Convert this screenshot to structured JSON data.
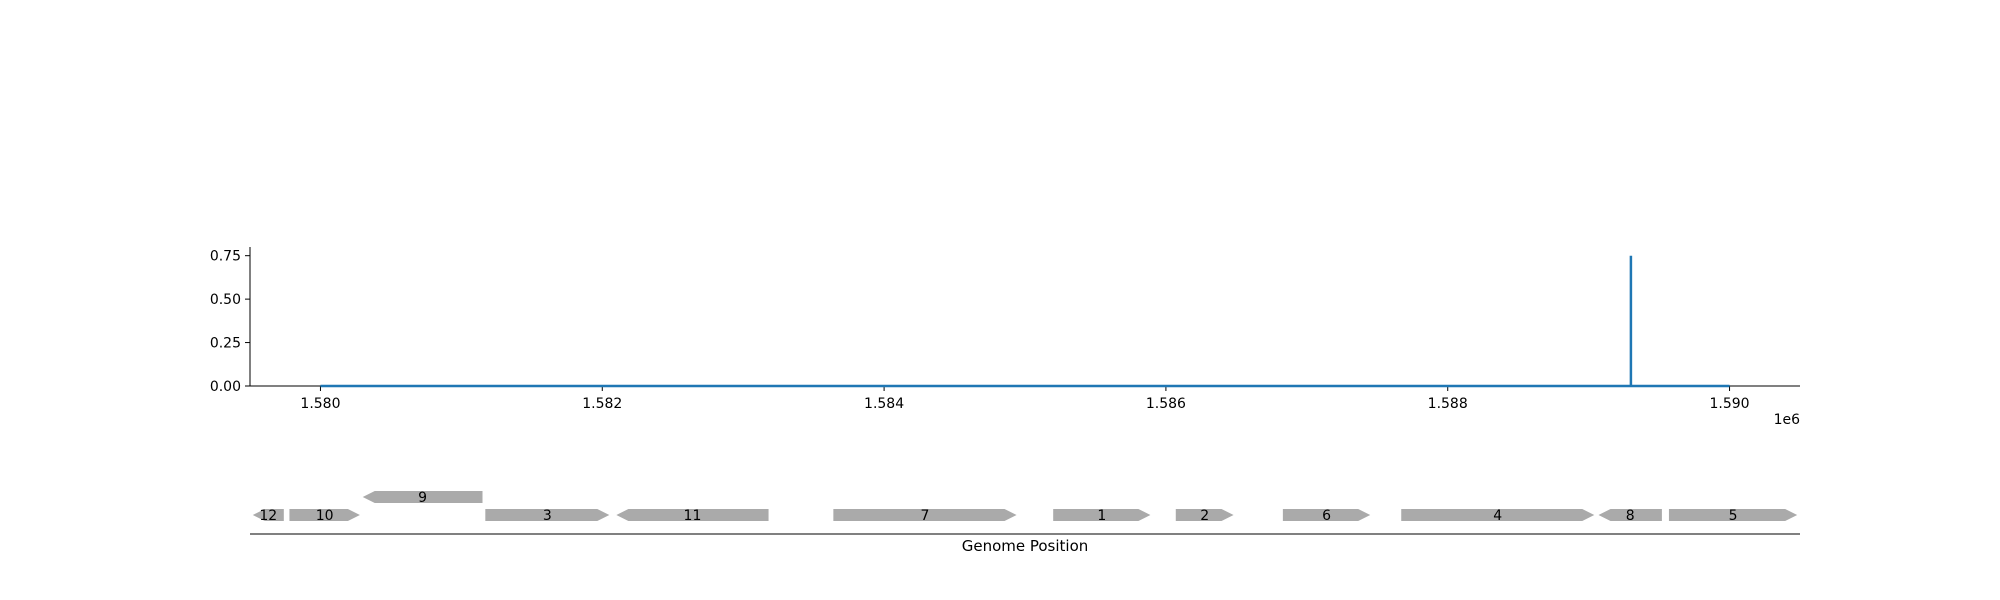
{
  "chart_data": [
    {
      "type": "line",
      "title": "",
      "xlabel": "",
      "ylabel": "",
      "x_offset_label": "1e6",
      "xlim": [
        1579500,
        1590500
      ],
      "ylim": [
        0,
        0.8
      ],
      "xticks": [
        1580000,
        1582000,
        1584000,
        1586000,
        1588000,
        1590000
      ],
      "xtick_labels": [
        "1.580",
        "1.582",
        "1.584",
        "1.586",
        "1.588",
        "1.590"
      ],
      "yticks": [
        0.0,
        0.25,
        0.5,
        0.75
      ],
      "ytick_labels": [
        "0.00",
        "0.25",
        "0.50",
        "0.75"
      ],
      "grid": false,
      "color": "#1f77b4",
      "series": [
        {
          "x": [
            1580000,
            1589300,
            1589300,
            1589300,
            1590000
          ],
          "y": [
            0.0,
            0.0,
            0.75,
            0.0,
            0.0
          ]
        }
      ]
    },
    {
      "type": "gene-track",
      "xlabel": "Genome Position",
      "xlim": [
        1579500,
        1590500
      ],
      "color": "#aaaaaa",
      "genes": [
        {
          "label": "12",
          "start": 1579520,
          "end": 1579740,
          "strand": "-",
          "row": 0
        },
        {
          "label": "10",
          "start": 1579780,
          "end": 1580280,
          "strand": "+",
          "row": 0
        },
        {
          "label": "9",
          "start": 1580300,
          "end": 1581150,
          "strand": "-",
          "row": 1
        },
        {
          "label": "3",
          "start": 1581170,
          "end": 1582050,
          "strand": "+",
          "row": 0
        },
        {
          "label": "11",
          "start": 1582100,
          "end": 1583180,
          "strand": "-",
          "row": 0
        },
        {
          "label": "7",
          "start": 1583640,
          "end": 1584940,
          "strand": "+",
          "row": 0
        },
        {
          "label": "1",
          "start": 1585200,
          "end": 1585890,
          "strand": "+",
          "row": 0
        },
        {
          "label": "2",
          "start": 1586070,
          "end": 1586480,
          "strand": "+",
          "row": 0
        },
        {
          "label": "6",
          "start": 1586830,
          "end": 1587450,
          "strand": "+",
          "row": 0
        },
        {
          "label": "4",
          "start": 1587670,
          "end": 1589040,
          "strand": "+",
          "row": 0
        },
        {
          "label": "8",
          "start": 1589070,
          "end": 1589520,
          "strand": "-",
          "row": 0
        },
        {
          "label": "5",
          "start": 1589570,
          "end": 1590480,
          "strand": "+",
          "row": 0
        }
      ]
    }
  ]
}
